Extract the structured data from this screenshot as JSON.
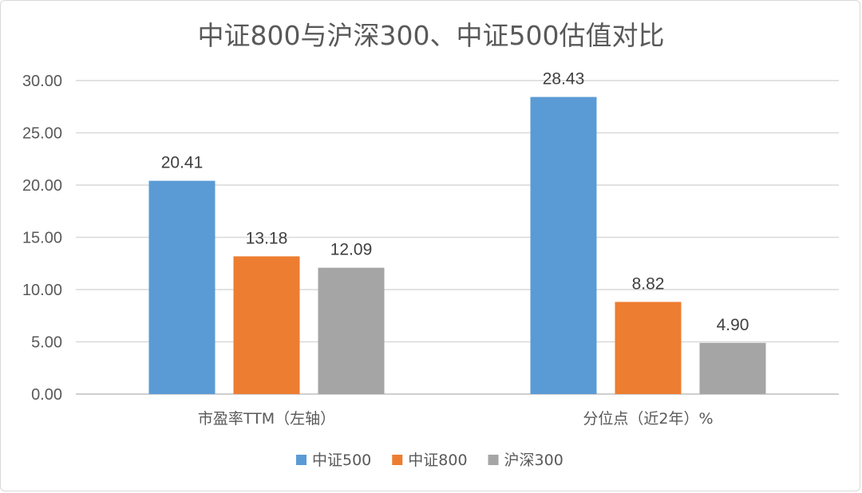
{
  "chart_data": {
    "type": "bar",
    "title": "中证800与沪深300、中证500估值对比",
    "categories": [
      "市盈率TTM（左轴）",
      "分位点（近2年）%"
    ],
    "series": [
      {
        "name": "中证500",
        "color": "#5b9bd5",
        "values": [
          20.41,
          28.43
        ],
        "labels": [
          "20.41",
          "28.43"
        ]
      },
      {
        "name": "中证800",
        "color": "#ed7d31",
        "values": [
          13.18,
          8.82
        ],
        "labels": [
          "13.18",
          "8.82"
        ]
      },
      {
        "name": "沪深300",
        "color": "#a5a5a5",
        "values": [
          12.09,
          4.9
        ],
        "labels": [
          "12.09",
          "4.90"
        ]
      }
    ],
    "ylim": [
      0,
      30
    ],
    "yticks": [
      "0.00",
      "5.00",
      "10.00",
      "15.00",
      "20.00",
      "25.00",
      "30.00"
    ],
    "grid": true,
    "legend": "bottom"
  }
}
